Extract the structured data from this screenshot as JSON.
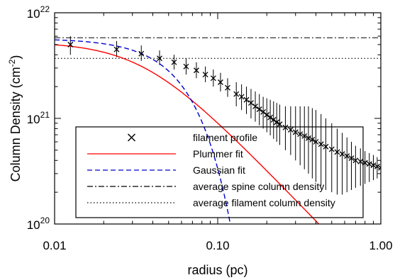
{
  "chart_data": {
    "type": "line",
    "xlabel": "radius (pc)",
    "ylabel_main": "Column Density (cm",
    "ylabel_sup": "-2",
    "ylabel_end": ")",
    "x_scale": "log",
    "y_scale": "log",
    "xlim": [
      0.01,
      1.0
    ],
    "ylim": [
      1e+20,
      1e+22
    ],
    "x_ticks": [
      {
        "value": 0.01,
        "label": "0.01"
      },
      {
        "value": 0.1,
        "label": "0.10"
      },
      {
        "value": 1.0,
        "label": "1.00"
      }
    ],
    "y_ticks": [
      {
        "value": 1e+20,
        "base": "10",
        "exp": "20"
      },
      {
        "value": 1e+21,
        "base": "10",
        "exp": "21"
      },
      {
        "value": 1e+22,
        "base": "10",
        "exp": "22"
      }
    ],
    "grid": false,
    "legend_position": "lower-right",
    "legend": [
      {
        "label": "filament profile",
        "style": "marker-x"
      },
      {
        "label": "Plummer fit",
        "style": "solid-red"
      },
      {
        "label": "Gaussian fit",
        "style": "dashed-blue"
      },
      {
        "label": "average spine column density",
        "style": "dashdot-black"
      },
      {
        "label": "average filament column density",
        "style": "dotted-black"
      }
    ],
    "series": [
      {
        "name": "filament profile",
        "kind": "points-with-errorbars",
        "x": [
          0.0125,
          0.024,
          0.034,
          0.044,
          0.054,
          0.064,
          0.074,
          0.084,
          0.094,
          0.104,
          0.115,
          0.13,
          0.14,
          0.15,
          0.16,
          0.17,
          0.18,
          0.19,
          0.2,
          0.21,
          0.22,
          0.23,
          0.24,
          0.26,
          0.28,
          0.3,
          0.32,
          0.34,
          0.36,
          0.38,
          0.4,
          0.43,
          0.46,
          0.5,
          0.54,
          0.58,
          0.62,
          0.66,
          0.7,
          0.75,
          0.8,
          0.85,
          0.9,
          0.95,
          1.0
        ],
        "y": [
          5e+21,
          4.5e+21,
          4.1e+21,
          3.7e+21,
          3.4e+21,
          3.1e+21,
          2.85e+21,
          2.6e+21,
          2.4e+21,
          2.2e+21,
          1.95e+21,
          1.7e+21,
          1.6e+21,
          1.5e+21,
          1.4e+21,
          1.3e+21,
          1.22e+21,
          1.15e+21,
          1.08e+21,
          1.02e+21,
          9.7e+20,
          9.2e+20,
          8.8e+20,
          8.2e+20,
          7.8e+20,
          7.4e+20,
          7.1e+20,
          6.8e+20,
          6.5e+20,
          6.3e+20,
          6e+20,
          5.7e+20,
          5.4e+20,
          5.1e+20,
          4.8e+20,
          4.6e+20,
          4.4e+20,
          4.2e+20,
          4e+20,
          3.9e+20,
          3.8e+20,
          3.7e+20,
          3.6e+20,
          3.5e+20,
          3.4e+20
        ],
        "y_low": [
          4e+21,
          3.8e+21,
          3.5e+21,
          3.2e+21,
          2.9e+21,
          2.6e+21,
          2.4e+21,
          2.2e+21,
          2e+21,
          1.8e+21,
          1.6e+21,
          1.3e+21,
          1.2e+21,
          1.1e+21,
          1e+21,
          9.3e+20,
          8.6e+20,
          8e+20,
          7.4e+20,
          6.9e+20,
          6.4e+20,
          6e+20,
          5.6e+20,
          5e+20,
          4.5e+20,
          4e+20,
          3.6e+20,
          3.3e+20,
          3e+20,
          2.7e+20,
          2.5e+20,
          2.3e+20,
          2.1e+20,
          2e+20,
          1.9e+20,
          1.9e+20,
          2e+20,
          2.1e+20,
          2.2e+20,
          2.3e+20,
          2.4e+20,
          2.5e+20,
          2.6e+20,
          2.7e+20,
          2.8e+20
        ],
        "y_high": [
          6e+21,
          5.4e+21,
          4.9e+21,
          4.4e+21,
          4e+21,
          3.7e+21,
          3.4e+21,
          3.1e+21,
          2.9e+21,
          2.7e+21,
          2.4e+21,
          2.2e+21,
          2.1e+21,
          2e+21,
          1.9e+21,
          1.8e+21,
          1.7e+21,
          1.6e+21,
          1.55e+21,
          1.5e+21,
          1.45e+21,
          1.4e+21,
          1.35e+21,
          1.3e+21,
          1.3e+21,
          1.3e+21,
          1.3e+21,
          1.3e+21,
          1.3e+21,
          1.25e+21,
          1.2e+21,
          1.1e+21,
          1e+21,
          9e+20,
          8e+20,
          7.3e+20,
          6.6e+20,
          6e+20,
          5.5e+20,
          5.2e+20,
          4.9e+20,
          4.7e+20,
          4.5e+20,
          4.3e+20,
          4.1e+20
        ]
      },
      {
        "name": "Plummer fit",
        "kind": "plummer",
        "color": "#ff0000",
        "N0": 5.3e+21,
        "R": 0.035,
        "p": 2.6
      },
      {
        "name": "Gaussian fit",
        "kind": "gaussian",
        "color": "#0000cc",
        "N0": 5.7e+21,
        "sigma": 0.042
      },
      {
        "name": "average spine column density",
        "kind": "hline",
        "color": "#000000",
        "y": 5.8e+21
      },
      {
        "name": "average filament column density",
        "kind": "hline",
        "color": "#000000",
        "y": 3.7e+21
      }
    ]
  }
}
